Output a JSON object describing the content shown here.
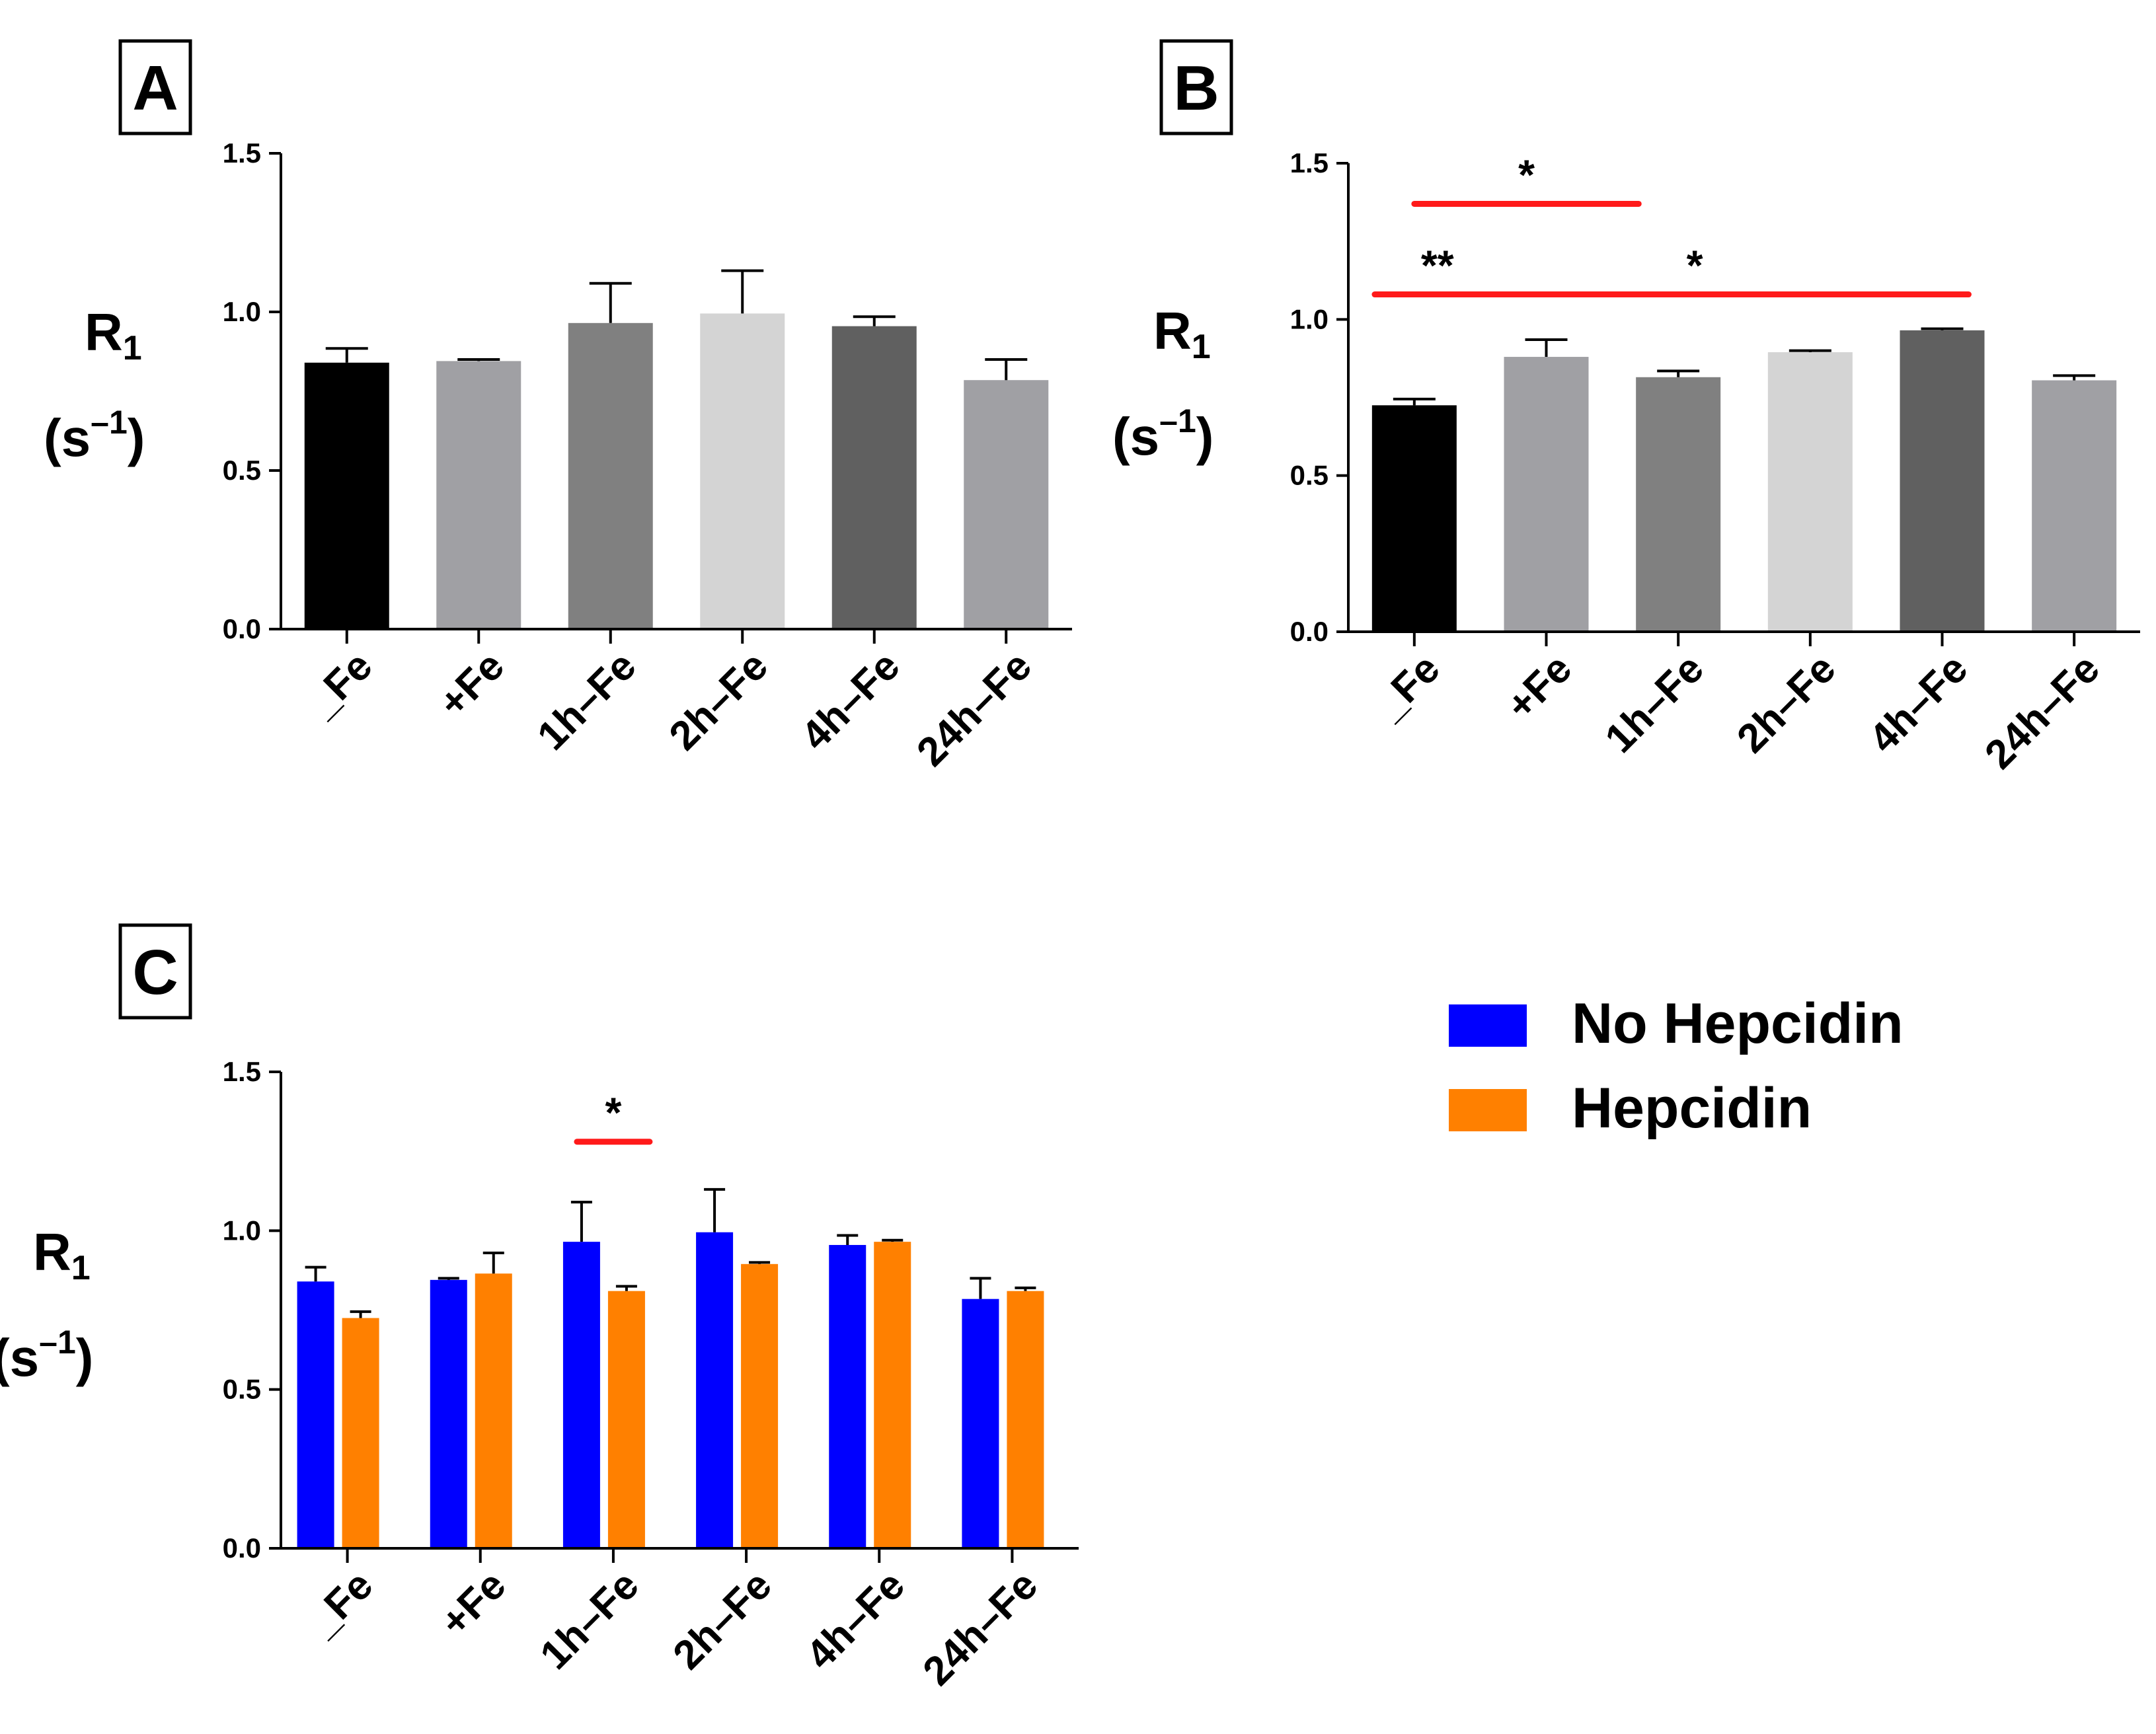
{
  "chart_data": [
    {
      "panel": "A",
      "type": "bar",
      "ylabel_main": "R",
      "ylabel_sub": "1",
      "yunit_base": "(s",
      "yunit_exp": "–1",
      "yunit_close": ")",
      "ylim": [
        0,
        1.5
      ],
      "yticks": [
        "0.0",
        "0.5",
        "1.0",
        "1.5"
      ],
      "categories": [
        "_Fe",
        "+Fe",
        "1h–Fe",
        "2h–Fe",
        "4h–Fe",
        "24h–Fe"
      ],
      "values": [
        0.84,
        0.845,
        0.965,
        0.995,
        0.955,
        0.785
      ],
      "errors": [
        0.045,
        0.005,
        0.125,
        0.135,
        0.03,
        0.065
      ],
      "colors": [
        "#000000",
        "#a0a0a4",
        "#808080",
        "#d4d4d4",
        "#606060",
        "#a0a0a4"
      ],
      "significance": []
    },
    {
      "panel": "B",
      "type": "bar",
      "ylabel_main": "R",
      "ylabel_sub": "1",
      "yunit_base": "(s",
      "yunit_exp": "–1",
      "yunit_close": ")",
      "ylim": [
        0,
        1.5
      ],
      "yticks": [
        "0.0",
        "0.5",
        "1.0",
        "1.5"
      ],
      "categories": [
        "_Fe",
        "+Fe",
        "1h–Fe",
        "2h–Fe",
        "4h–Fe",
        "24h–Fe"
      ],
      "values": [
        0.725,
        0.88,
        0.815,
        0.895,
        0.965,
        0.805
      ],
      "errors": [
        0.02,
        0.055,
        0.02,
        0.005,
        0.005,
        0.015
      ],
      "colors": [
        "#000000",
        "#a0a0a4",
        "#808080",
        "#d4d4d4",
        "#606060",
        "#a0a0a4"
      ],
      "significance": [
        {
          "from": 0,
          "to": 1.7,
          "level": 1.37,
          "label": "*"
        },
        {
          "from": -0.3,
          "to": 0.65,
          "level": 1.08,
          "label": "**"
        },
        {
          "from": 0.05,
          "to": 4.2,
          "level": 1.08,
          "label": "*"
        }
      ]
    },
    {
      "panel": "C",
      "type": "bar",
      "ylabel_main": "R",
      "ylabel_sub": "1",
      "yunit_base": "(s",
      "yunit_exp": "–1",
      "yunit_close": ")",
      "ylim": [
        0,
        1.5
      ],
      "yticks": [
        "0.0",
        "0.5",
        "1.0",
        "1.5"
      ],
      "categories": [
        "_Fe",
        "+Fe",
        "1h–Fe",
        "2h–Fe",
        "4h–Fe",
        "24h–Fe"
      ],
      "series": [
        {
          "name": "No Hepcidin",
          "color": "#0000ff",
          "values": [
            0.84,
            0.845,
            0.965,
            0.995,
            0.955,
            0.785
          ],
          "errors": [
            0.045,
            0.005,
            0.125,
            0.135,
            0.03,
            0.065
          ]
        },
        {
          "name": "Hepcidin",
          "color": "#ff8000",
          "values": [
            0.725,
            0.865,
            0.81,
            0.895,
            0.965,
            0.81
          ],
          "errors": [
            0.02,
            0.065,
            0.015,
            0.005,
            0.005,
            0.01
          ]
        }
      ],
      "significance": [
        {
          "category": 2,
          "level": 1.28,
          "label": "*"
        }
      ]
    }
  ]
}
